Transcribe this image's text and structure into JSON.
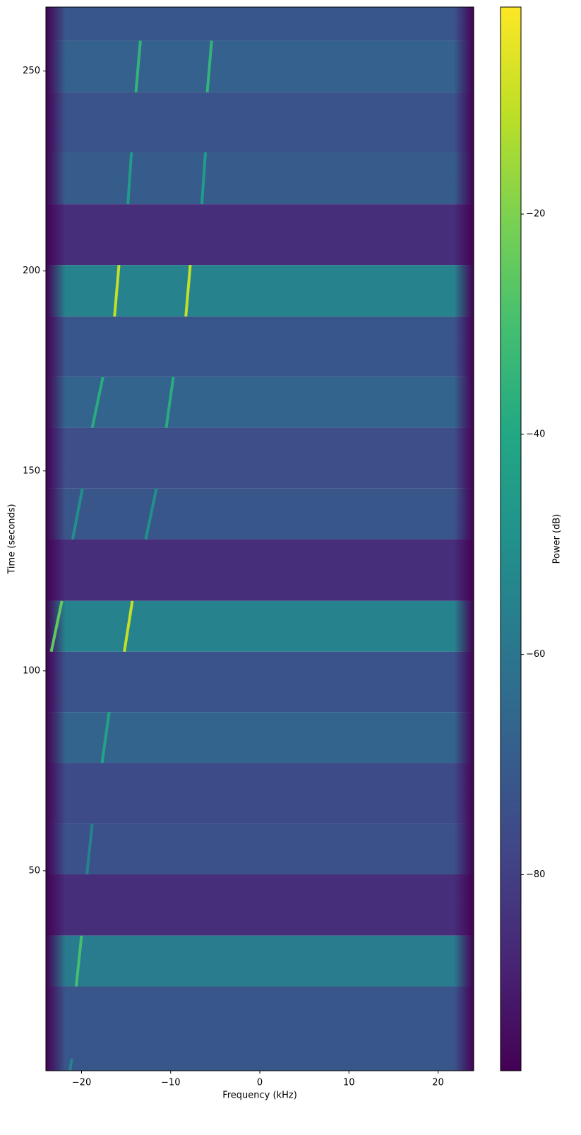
{
  "chart_data": {
    "type": "spectrogram",
    "xlabel": "Frequency (kHz)",
    "ylabel": "Time (seconds)",
    "colorbar_label": "Power (dB)",
    "colormap": "viridis",
    "xlim": [
      -24,
      24
    ],
    "ylim": [
      0,
      266
    ],
    "xticks": [
      {
        "value": -20,
        "label": "−20"
      },
      {
        "value": -10,
        "label": "−10"
      },
      0,
      10,
      20
    ],
    "yticks": [
      50,
      100,
      150,
      200,
      250
    ],
    "clim": [
      -97.8,
      -1.2
    ],
    "cticks": [
      {
        "value": -20,
        "label": "−20"
      },
      {
        "value": -40,
        "label": "−40"
      },
      {
        "value": -60,
        "label": "−60"
      },
      {
        "value": -80,
        "label": "−80"
      }
    ],
    "segments": [
      {
        "t": [
          257.6,
          266
        ],
        "level": -72
      },
      {
        "t": [
          244.7,
          257.6
        ],
        "level": -68
      },
      {
        "t": [
          229.7,
          244.7
        ],
        "level": -73
      },
      {
        "t": [
          216.7,
          229.7
        ],
        "level": -70
      },
      {
        "t": [
          201.5,
          216.7
        ],
        "level": -85
      },
      {
        "t": [
          188.6,
          201.5
        ],
        "level": -55
      },
      {
        "t": [
          173.5,
          188.6
        ],
        "level": -72
      },
      {
        "t": [
          160.8,
          173.5
        ],
        "level": -67
      },
      {
        "t": [
          145.6,
          160.8
        ],
        "level": -75
      },
      {
        "t": [
          132.9,
          145.6
        ],
        "level": -72
      },
      {
        "t": [
          117.5,
          132.9
        ],
        "level": -85
      },
      {
        "t": [
          104.8,
          117.5
        ],
        "level": -55
      },
      {
        "t": [
          89.7,
          104.8
        ],
        "level": -73
      },
      {
        "t": [
          77.0,
          89.7
        ],
        "level": -67
      },
      {
        "t": [
          61.8,
          77.0
        ],
        "level": -76
      },
      {
        "t": [
          49.1,
          61.8
        ],
        "level": -74
      },
      {
        "t": [
          33.8,
          49.1
        ],
        "level": -85
      },
      {
        "t": [
          21.1,
          33.8
        ],
        "level": -58
      },
      {
        "t": [
          0,
          21.1
        ],
        "level": -72
      }
    ],
    "chirps": [
      {
        "t": [
          244.7,
          257.6
        ],
        "f": [
          -13.9,
          -13.4
        ],
        "level": -35
      },
      {
        "t": [
          244.7,
          257.6
        ],
        "f": [
          -5.9,
          -5.4
        ],
        "level": -35
      },
      {
        "t": [
          216.7,
          229.7
        ],
        "f": [
          -14.8,
          -14.4
        ],
        "level": -45
      },
      {
        "t": [
          216.7,
          229.7
        ],
        "f": [
          -6.5,
          -6.1
        ],
        "level": -45
      },
      {
        "t": [
          188.6,
          201.5
        ],
        "f": [
          -16.3,
          -15.8
        ],
        "level": -10
      },
      {
        "t": [
          188.6,
          201.5
        ],
        "f": [
          -8.3,
          -7.8
        ],
        "level": -10
      },
      {
        "t": [
          160.8,
          173.5
        ],
        "f": [
          -18.8,
          -17.6
        ],
        "level": -38
      },
      {
        "t": [
          160.8,
          173.5
        ],
        "f": [
          -10.5,
          -9.7
        ],
        "level": -38
      },
      {
        "t": [
          132.9,
          145.6
        ],
        "f": [
          -21.0,
          -19.9
        ],
        "level": -50
      },
      {
        "t": [
          132.9,
          145.6
        ],
        "f": [
          -12.8,
          -11.6
        ],
        "level": -50
      },
      {
        "t": [
          104.8,
          117.5
        ],
        "f": [
          -23.4,
          -22.2
        ],
        "level": -25
      },
      {
        "t": [
          104.8,
          117.5
        ],
        "f": [
          -15.2,
          -14.3
        ],
        "level": -10
      },
      {
        "t": [
          77.0,
          89.7
        ],
        "f": [
          -17.7,
          -16.9
        ],
        "level": -42
      },
      {
        "t": [
          49.1,
          61.8
        ],
        "f": [
          -19.4,
          -18.8
        ],
        "level": -55
      },
      {
        "t": [
          21.1,
          33.8
        ],
        "f": [
          -20.6,
          -20.0
        ],
        "level": -30
      },
      {
        "t": [
          0,
          3.0
        ],
        "f": [
          -21.3,
          -21.1
        ],
        "level": -55
      }
    ]
  }
}
